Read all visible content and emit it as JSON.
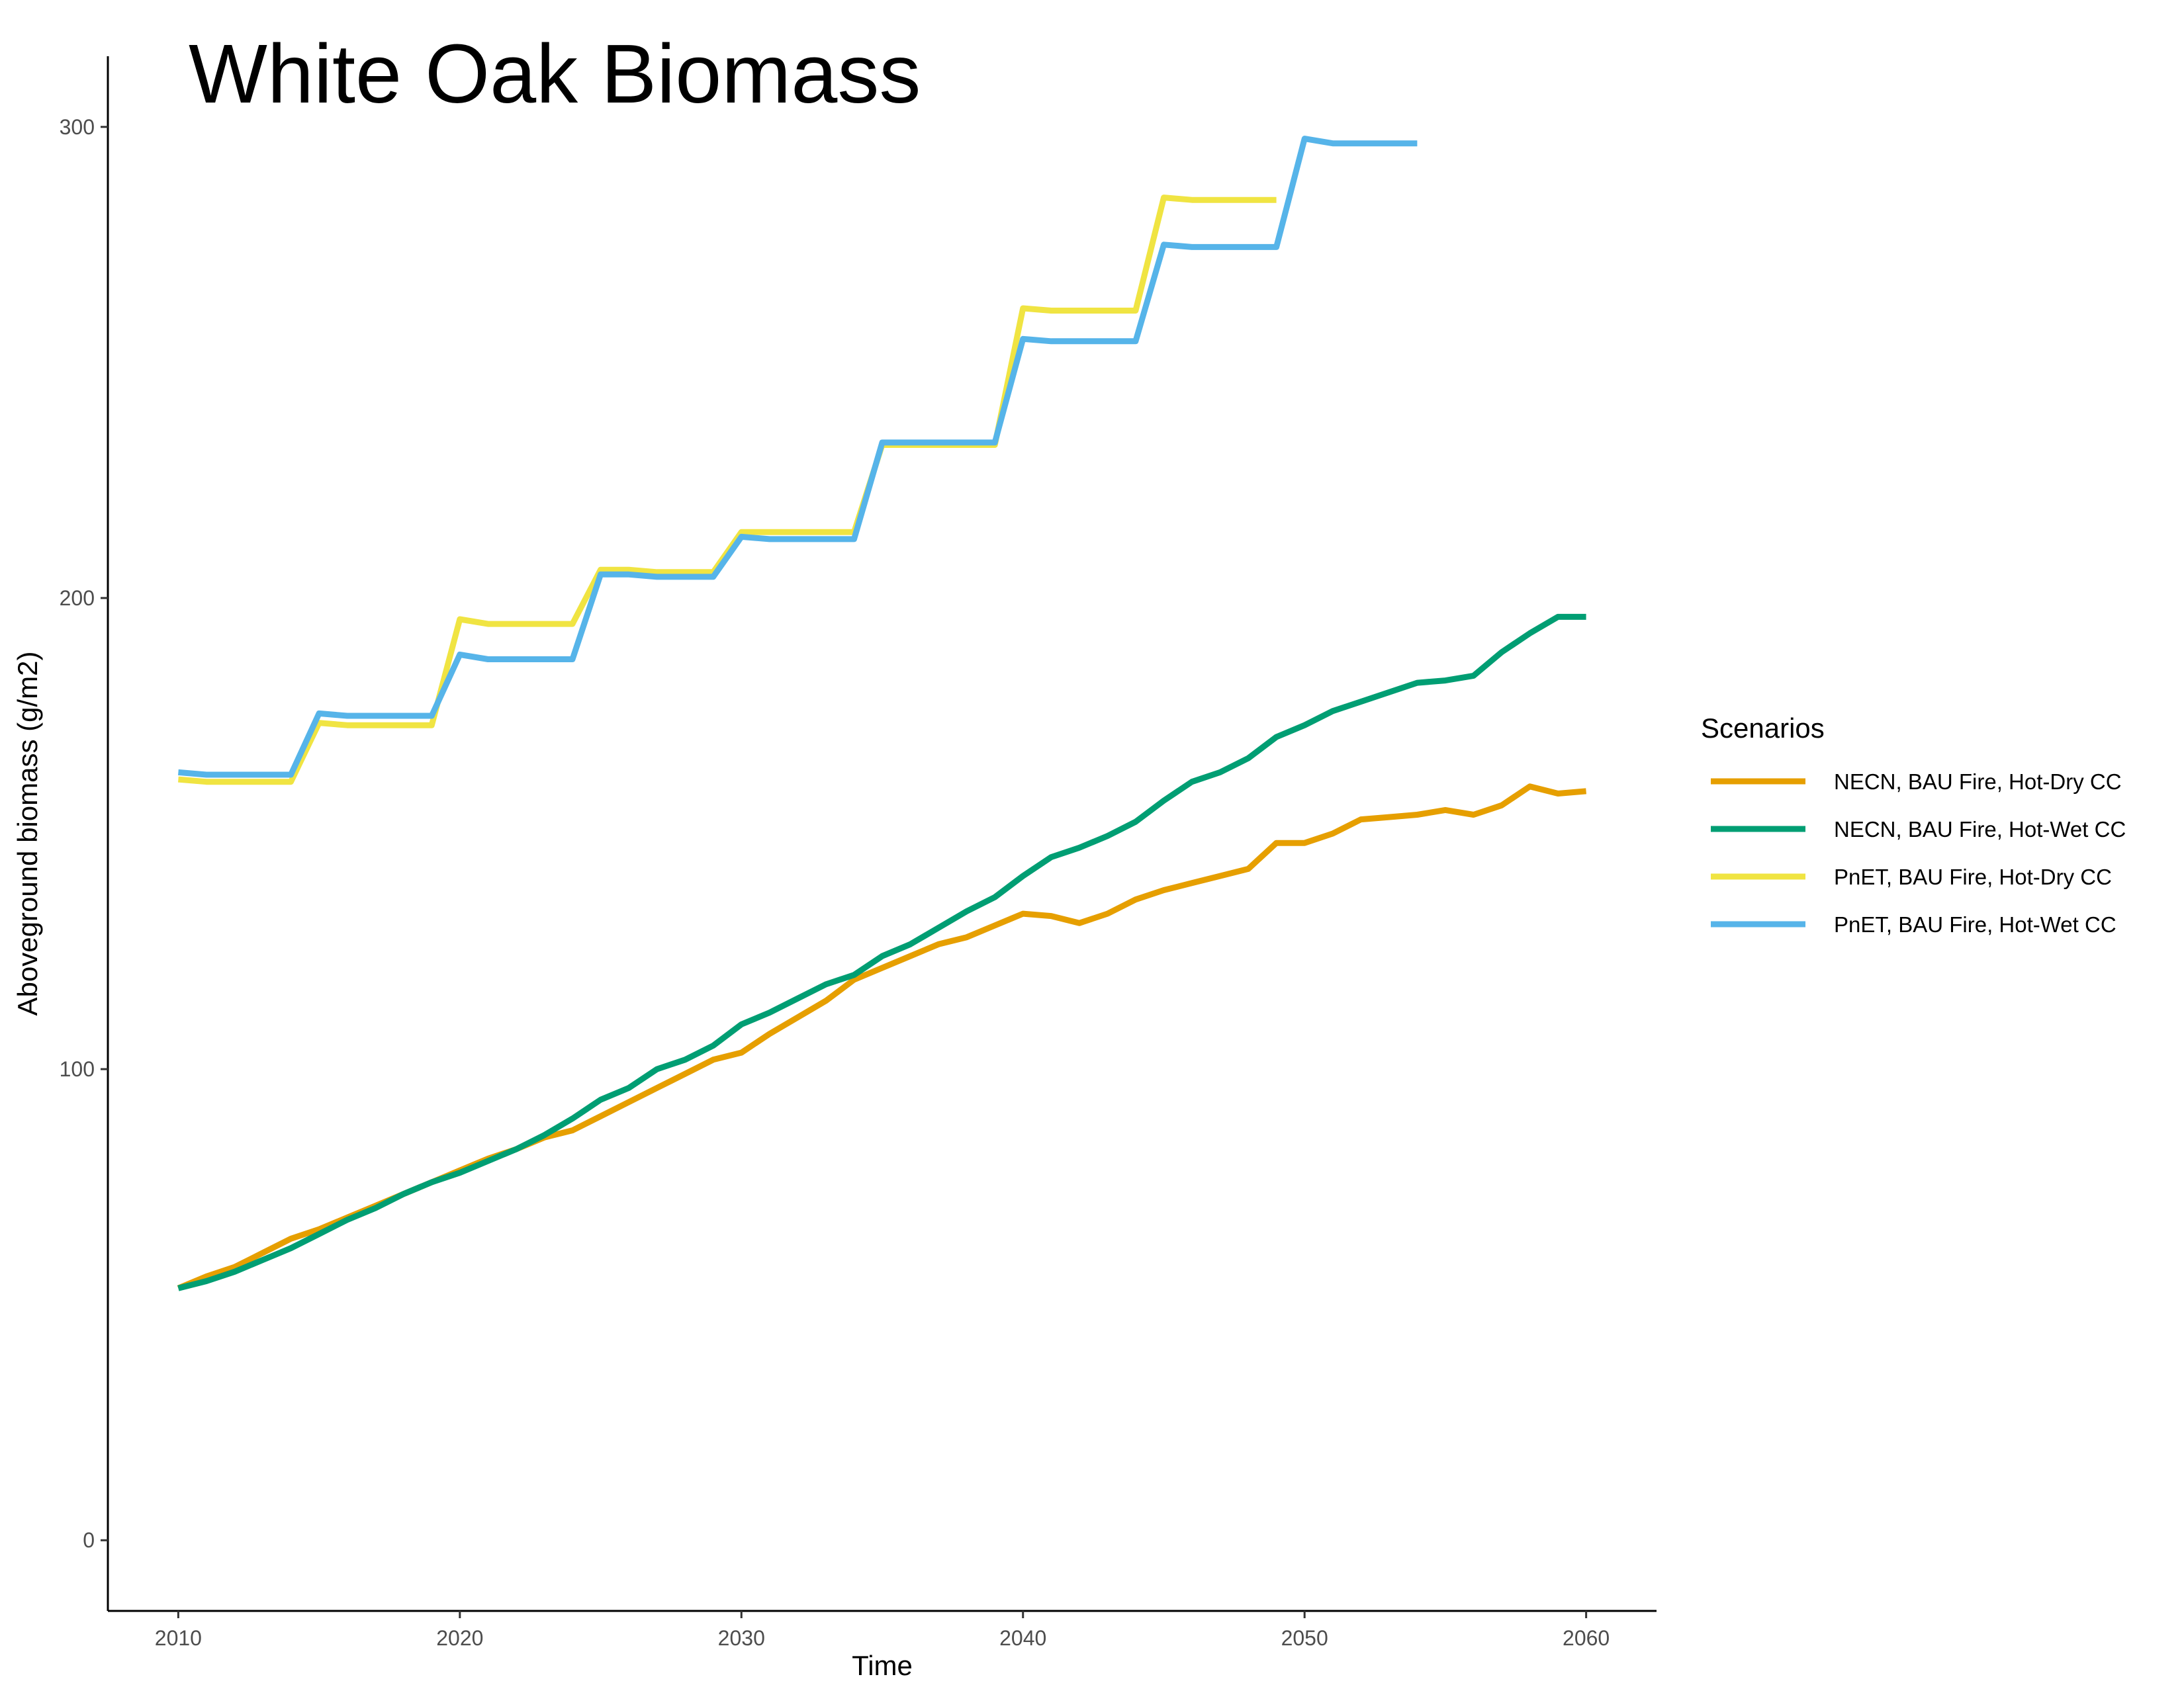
{
  "chart_data": {
    "type": "line",
    "title": "White Oak Biomass",
    "xlabel": "Time",
    "ylabel": "Aboveground biomass (g/m2)",
    "xlim": [
      2007.5,
      2062.5
    ],
    "ylim": [
      -15,
      315
    ],
    "xticks": [
      2010,
      2020,
      2030,
      2040,
      2050,
      2060
    ],
    "yticks": [
      0,
      100,
      200,
      300
    ],
    "grid": false,
    "legend": {
      "title": "Scenarios",
      "placement": "right"
    },
    "series": [
      {
        "name": "NECN, BAU Fire, Hot-Dry CC",
        "color": "#E69F00",
        "x": [
          2010,
          2011,
          2012,
          2013,
          2014,
          2015,
          2016,
          2017,
          2018,
          2019,
          2020,
          2021,
          2022,
          2023,
          2024,
          2025,
          2026,
          2027,
          2028,
          2029,
          2030,
          2031,
          2032,
          2033,
          2034,
          2035,
          2036,
          2037,
          2038,
          2039,
          2040,
          2041,
          2042,
          2043,
          2044,
          2045,
          2046,
          2047,
          2048,
          2049,
          2050,
          2051,
          2052,
          2053,
          2054,
          2055,
          2056,
          2057,
          2058,
          2059,
          2060
        ],
        "y": [
          53.5,
          56,
          58,
          61,
          64,
          66,
          68.5,
          71,
          73.5,
          76,
          78.5,
          81,
          83,
          85.5,
          87,
          90,
          93,
          96,
          99,
          102,
          103.5,
          107.5,
          111,
          114.5,
          119,
          121.5,
          124,
          126.5,
          128,
          130.5,
          133,
          132.5,
          131,
          133,
          136,
          138,
          139.5,
          141,
          142.5,
          148,
          148,
          150,
          153,
          153.5,
          154,
          155,
          154,
          156,
          160,
          158.5,
          159
        ]
      },
      {
        "name": "NECN, BAU Fire, Hot-Wet CC",
        "color": "#009E73",
        "x": [
          2010,
          2011,
          2012,
          2013,
          2014,
          2015,
          2016,
          2017,
          2018,
          2019,
          2020,
          2021,
          2022,
          2023,
          2024,
          2025,
          2026,
          2027,
          2028,
          2029,
          2030,
          2031,
          2032,
          2033,
          2034,
          2035,
          2036,
          2037,
          2038,
          2039,
          2040,
          2041,
          2042,
          2043,
          2044,
          2045,
          2046,
          2047,
          2048,
          2049,
          2050,
          2051,
          2052,
          2053,
          2054,
          2055,
          2056,
          2057,
          2058,
          2059,
          2060
        ],
        "y": [
          53.5,
          55,
          57,
          59.5,
          62,
          65,
          68,
          70.5,
          73.5,
          76,
          78,
          80.5,
          83,
          86,
          89.5,
          93.5,
          96,
          100,
          102,
          105,
          109.5,
          112,
          115,
          118,
          120,
          124,
          126.5,
          130,
          133.5,
          136.5,
          141,
          145,
          147,
          149.5,
          152.5,
          157,
          161,
          163,
          166,
          170.5,
          173,
          176,
          178,
          180,
          182,
          182.5,
          183.5,
          188.5,
          192.5,
          196,
          196
        ]
      },
      {
        "name": "PnET, BAU Fire, Hot-Dry CC",
        "color": "#F0E442",
        "x": [
          2010,
          2011,
          2012,
          2013,
          2014,
          2015,
          2016,
          2017,
          2018,
          2019,
          2020,
          2021,
          2022,
          2023,
          2024,
          2025,
          2026,
          2027,
          2028,
          2029,
          2030,
          2031,
          2032,
          2033,
          2034,
          2035,
          2036,
          2037,
          2038,
          2039,
          2040,
          2041,
          2042,
          2043,
          2044,
          2045,
          2046,
          2047,
          2048,
          2049
        ],
        "y": [
          161.5,
          161,
          161,
          161,
          161,
          173.5,
          173,
          173,
          173,
          173,
          195.5,
          194.5,
          194.5,
          194.5,
          194.5,
          206,
          206,
          205.5,
          205.5,
          205.5,
          214,
          214,
          214,
          214,
          214,
          232.5,
          232.5,
          232.5,
          232.5,
          232.5,
          261.5,
          261,
          261,
          261,
          261,
          285,
          284.5,
          284.5,
          284.5,
          284.5
        ]
      },
      {
        "name": "PnET, BAU Fire, Hot-Wet CC",
        "color": "#56B4E9",
        "x": [
          2010,
          2011,
          2012,
          2013,
          2014,
          2015,
          2016,
          2017,
          2018,
          2019,
          2020,
          2021,
          2022,
          2023,
          2024,
          2025,
          2026,
          2027,
          2028,
          2029,
          2030,
          2031,
          2032,
          2033,
          2034,
          2035,
          2036,
          2037,
          2038,
          2039,
          2040,
          2041,
          2042,
          2043,
          2044,
          2045,
          2046,
          2047,
          2048,
          2049,
          2050,
          2051,
          2052,
          2053,
          2054
        ],
        "y": [
          163,
          162.5,
          162.5,
          162.5,
          162.5,
          175.5,
          175,
          175,
          175,
          175,
          188,
          187,
          187,
          187,
          187,
          205,
          205,
          204.5,
          204.5,
          204.5,
          213,
          212.5,
          212.5,
          212.5,
          212.5,
          233,
          233,
          233,
          233,
          233,
          255,
          254.5,
          254.5,
          254.5,
          254.5,
          275,
          274.5,
          274.5,
          274.5,
          274.5,
          297.5,
          296.5,
          296.5,
          296.5,
          296.5
        ]
      }
    ]
  }
}
